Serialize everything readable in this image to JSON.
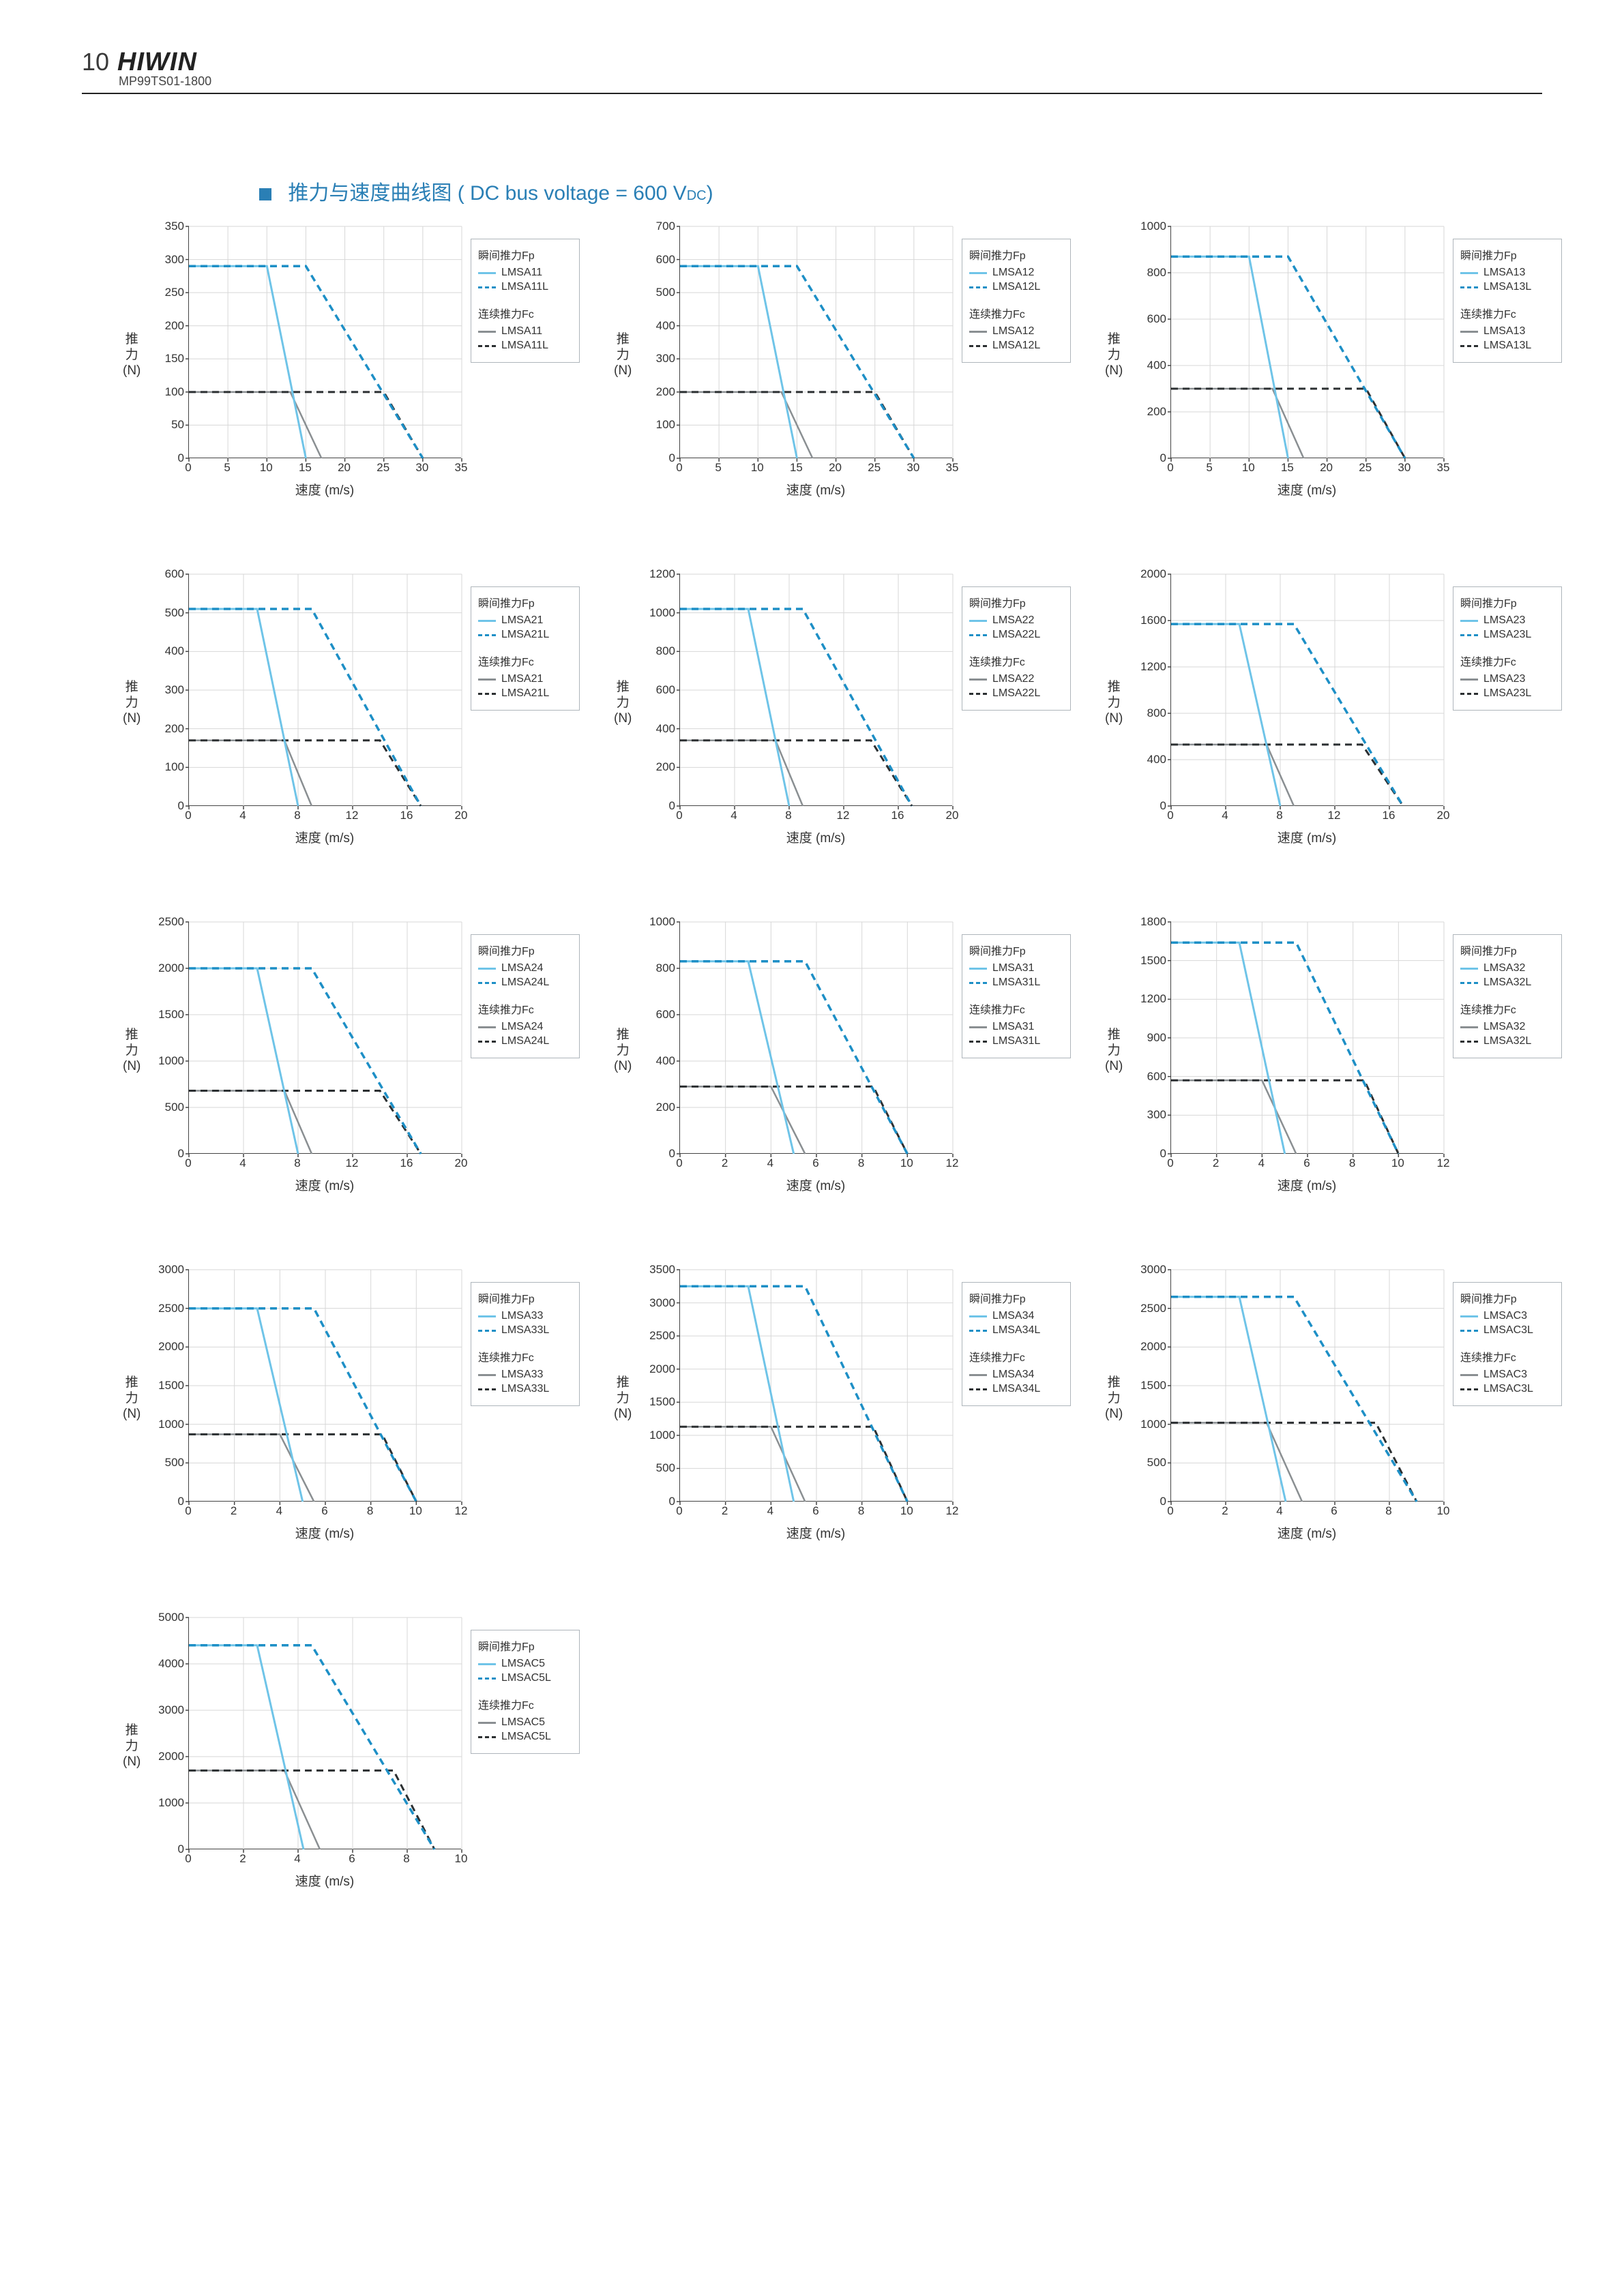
{
  "header": {
    "page_number": "10",
    "brand": "HIWIN",
    "subcode": "MP99TS01-1800"
  },
  "section_title": {
    "prefix": "推力与速度曲线图",
    "bus_label": "( DC bus voltage = 600 V",
    "dc_sub": "DC",
    "close": ")"
  },
  "axis_labels": {
    "y": "推\n力\n(N)",
    "x": "速度 (m/s)"
  },
  "legend_labels": {
    "fp": "瞬间推力Fp",
    "fc": "连续推力Fc"
  },
  "colors": {
    "fp_solid": "#6fc4e8",
    "fp_dash": "#1d8fc6",
    "fc_solid": "#8a8f92",
    "fc_dash": "#2b2f31",
    "grid": "#d7d7d7",
    "axis": "#444444",
    "legend_border": "#aeb5bb",
    "text": "#333333",
    "title": "#2a7fb5"
  },
  "charts": [
    {
      "models": [
        "LMSA11",
        "LMSA11L"
      ],
      "xmax": 35,
      "xstep": 5,
      "xticks": [
        0,
        5,
        10,
        15,
        20,
        25,
        30,
        35
      ],
      "ymax": 350,
      "yticks": [
        0,
        50,
        100,
        150,
        200,
        250,
        300,
        350
      ],
      "fp_solid": [
        [
          0,
          290
        ],
        [
          10,
          290
        ],
        [
          15,
          0
        ]
      ],
      "fp_dash": [
        [
          0,
          290
        ],
        [
          15,
          290
        ],
        [
          30,
          0
        ]
      ],
      "fc_solid": [
        [
          0,
          100
        ],
        [
          13,
          100
        ],
        [
          17,
          0
        ]
      ],
      "fc_dash": [
        [
          0,
          100
        ],
        [
          25,
          100
        ],
        [
          30,
          0
        ]
      ]
    },
    {
      "models": [
        "LMSA12",
        "LMSA12L"
      ],
      "xmax": 35,
      "xstep": 5,
      "xticks": [
        0,
        5,
        10,
        15,
        20,
        25,
        30,
        35
      ],
      "ymax": 700,
      "yticks": [
        0,
        100,
        200,
        300,
        400,
        500,
        600,
        700
      ],
      "fp_solid": [
        [
          0,
          580
        ],
        [
          10,
          580
        ],
        [
          15,
          0
        ]
      ],
      "fp_dash": [
        [
          0,
          580
        ],
        [
          15,
          580
        ],
        [
          30,
          0
        ]
      ],
      "fc_solid": [
        [
          0,
          200
        ],
        [
          13,
          200
        ],
        [
          17,
          0
        ]
      ],
      "fc_dash": [
        [
          0,
          200
        ],
        [
          25,
          200
        ],
        [
          30,
          0
        ]
      ]
    },
    {
      "models": [
        "LMSA13",
        "LMSA13L"
      ],
      "xmax": 35,
      "xstep": 5,
      "xticks": [
        0,
        5,
        10,
        15,
        20,
        25,
        30,
        35
      ],
      "ymax": 1000,
      "yticks": [
        0,
        200,
        400,
        600,
        800,
        1000
      ],
      "fp_solid": [
        [
          0,
          870
        ],
        [
          10,
          870
        ],
        [
          15,
          0
        ]
      ],
      "fp_dash": [
        [
          0,
          870
        ],
        [
          15,
          870
        ],
        [
          30,
          0
        ]
      ],
      "fc_solid": [
        [
          0,
          300
        ],
        [
          13,
          300
        ],
        [
          17,
          0
        ]
      ],
      "fc_dash": [
        [
          0,
          300
        ],
        [
          25,
          300
        ],
        [
          30,
          0
        ]
      ]
    },
    {
      "models": [
        "LMSA21",
        "LMSA21L"
      ],
      "xmax": 20,
      "xstep": 4,
      "xticks": [
        0,
        4,
        8,
        12,
        16,
        20
      ],
      "ymax": 600,
      "yticks": [
        0,
        100,
        200,
        300,
        400,
        500,
        600
      ],
      "fp_solid": [
        [
          0,
          510
        ],
        [
          5,
          510
        ],
        [
          8,
          0
        ]
      ],
      "fp_dash": [
        [
          0,
          510
        ],
        [
          9,
          510
        ],
        [
          17,
          0
        ]
      ],
      "fc_solid": [
        [
          0,
          170
        ],
        [
          7,
          170
        ],
        [
          9,
          0
        ]
      ],
      "fc_dash": [
        [
          0,
          170
        ],
        [
          14,
          170
        ],
        [
          17,
          0
        ]
      ]
    },
    {
      "models": [
        "LMSA22",
        "LMSA22L"
      ],
      "xmax": 20,
      "xstep": 4,
      "xticks": [
        0,
        4,
        8,
        12,
        16,
        20
      ],
      "ymax": 1200,
      "yticks": [
        0,
        200,
        400,
        600,
        800,
        1000,
        1200
      ],
      "fp_solid": [
        [
          0,
          1020
        ],
        [
          5,
          1020
        ],
        [
          8,
          0
        ]
      ],
      "fp_dash": [
        [
          0,
          1020
        ],
        [
          9,
          1020
        ],
        [
          17,
          0
        ]
      ],
      "fc_solid": [
        [
          0,
          340
        ],
        [
          7,
          340
        ],
        [
          9,
          0
        ]
      ],
      "fc_dash": [
        [
          0,
          340
        ],
        [
          14,
          340
        ],
        [
          17,
          0
        ]
      ]
    },
    {
      "models": [
        "LMSA23",
        "LMSA23L"
      ],
      "xmax": 20,
      "xstep": 4,
      "xticks": [
        0,
        4,
        8,
        12,
        16,
        20
      ],
      "ymax": 2000,
      "yticks": [
        0,
        400,
        800,
        1200,
        1600,
        2000
      ],
      "fp_solid": [
        [
          0,
          1570
        ],
        [
          5,
          1570
        ],
        [
          8,
          0
        ]
      ],
      "fp_dash": [
        [
          0,
          1570
        ],
        [
          9,
          1570
        ],
        [
          17,
          0
        ]
      ],
      "fc_solid": [
        [
          0,
          530
        ],
        [
          7,
          530
        ],
        [
          9,
          0
        ]
      ],
      "fc_dash": [
        [
          0,
          530
        ],
        [
          14,
          530
        ],
        [
          17,
          0
        ]
      ]
    },
    {
      "models": [
        "LMSA24",
        "LMSA24L"
      ],
      "xmax": 20,
      "xstep": 4,
      "xticks": [
        0,
        4,
        8,
        12,
        16,
        20
      ],
      "ymax": 2500,
      "yticks": [
        0,
        500,
        1000,
        1500,
        2000,
        2500
      ],
      "fp_solid": [
        [
          0,
          2000
        ],
        [
          5,
          2000
        ],
        [
          8,
          0
        ]
      ],
      "fp_dash": [
        [
          0,
          2000
        ],
        [
          9,
          2000
        ],
        [
          17,
          0
        ]
      ],
      "fc_solid": [
        [
          0,
          680
        ],
        [
          7,
          680
        ],
        [
          9,
          0
        ]
      ],
      "fc_dash": [
        [
          0,
          680
        ],
        [
          14,
          680
        ],
        [
          17,
          0
        ]
      ]
    },
    {
      "models": [
        "LMSA31",
        "LMSA31L"
      ],
      "xmax": 12,
      "xstep": 2,
      "xticks": [
        0,
        2,
        4,
        6,
        8,
        10,
        12
      ],
      "ymax": 1000,
      "yticks": [
        0,
        200,
        400,
        600,
        800,
        1000
      ],
      "fp_solid": [
        [
          0,
          830
        ],
        [
          3,
          830
        ],
        [
          5,
          0
        ]
      ],
      "fp_dash": [
        [
          0,
          830
        ],
        [
          5.5,
          830
        ],
        [
          10,
          0
        ]
      ],
      "fc_solid": [
        [
          0,
          290
        ],
        [
          4,
          290
        ],
        [
          5.5,
          0
        ]
      ],
      "fc_dash": [
        [
          0,
          290
        ],
        [
          8.5,
          290
        ],
        [
          10,
          0
        ]
      ]
    },
    {
      "models": [
        "LMSA32",
        "LMSA32L"
      ],
      "xmax": 12,
      "xstep": 2,
      "xticks": [
        0,
        2,
        4,
        6,
        8,
        10,
        12
      ],
      "ymax": 1800,
      "yticks": [
        0,
        300,
        600,
        900,
        1200,
        1500,
        1800
      ],
      "fp_solid": [
        [
          0,
          1640
        ],
        [
          3,
          1640
        ],
        [
          5,
          0
        ]
      ],
      "fp_dash": [
        [
          0,
          1640
        ],
        [
          5.5,
          1640
        ],
        [
          10,
          0
        ]
      ],
      "fc_solid": [
        [
          0,
          570
        ],
        [
          4,
          570
        ],
        [
          5.5,
          0
        ]
      ],
      "fc_dash": [
        [
          0,
          570
        ],
        [
          8.5,
          570
        ],
        [
          10,
          0
        ]
      ]
    },
    {
      "models": [
        "LMSA33",
        "LMSA33L"
      ],
      "xmax": 12,
      "xstep": 2,
      "xticks": [
        0,
        2,
        4,
        6,
        8,
        10,
        12
      ],
      "ymax": 3000,
      "yticks": [
        0,
        500,
        1000,
        1500,
        2000,
        2500,
        3000
      ],
      "fp_solid": [
        [
          0,
          2500
        ],
        [
          3,
          2500
        ],
        [
          5,
          0
        ]
      ],
      "fp_dash": [
        [
          0,
          2500
        ],
        [
          5.5,
          2500
        ],
        [
          10,
          0
        ]
      ],
      "fc_solid": [
        [
          0,
          870
        ],
        [
          4,
          870
        ],
        [
          5.5,
          0
        ]
      ],
      "fc_dash": [
        [
          0,
          870
        ],
        [
          8.5,
          870
        ],
        [
          10,
          0
        ]
      ]
    },
    {
      "models": [
        "LMSA34",
        "LMSA34L"
      ],
      "xmax": 12,
      "xstep": 2,
      "xticks": [
        0,
        2,
        4,
        6,
        8,
        10,
        12
      ],
      "ymax": 3500,
      "yticks": [
        0,
        500,
        1000,
        1500,
        2000,
        2500,
        3000,
        3500
      ],
      "fp_solid": [
        [
          0,
          3250
        ],
        [
          3,
          3250
        ],
        [
          5,
          0
        ]
      ],
      "fp_dash": [
        [
          0,
          3250
        ],
        [
          5.5,
          3250
        ],
        [
          10,
          0
        ]
      ],
      "fc_solid": [
        [
          0,
          1130
        ],
        [
          4,
          1130
        ],
        [
          5.5,
          0
        ]
      ],
      "fc_dash": [
        [
          0,
          1130
        ],
        [
          8.5,
          1130
        ],
        [
          10,
          0
        ]
      ]
    },
    {
      "models": [
        "LMSAC3",
        "LMSAC3L"
      ],
      "xmax": 10,
      "xstep": 2,
      "xticks": [
        0,
        2,
        4,
        6,
        8,
        10
      ],
      "ymax": 3000,
      "yticks": [
        0,
        500,
        1000,
        1500,
        2000,
        2500,
        3000
      ],
      "fp_solid": [
        [
          0,
          2650
        ],
        [
          2.5,
          2650
        ],
        [
          4.2,
          0
        ]
      ],
      "fp_dash": [
        [
          0,
          2650
        ],
        [
          4.5,
          2650
        ],
        [
          9,
          0
        ]
      ],
      "fc_solid": [
        [
          0,
          1020
        ],
        [
          3.5,
          1020
        ],
        [
          4.8,
          0
        ]
      ],
      "fc_dash": [
        [
          0,
          1020
        ],
        [
          7.5,
          1020
        ],
        [
          9,
          0
        ]
      ]
    },
    {
      "models": [
        "LMSAC5",
        "LMSAC5L"
      ],
      "xmax": 10,
      "xstep": 2,
      "xticks": [
        0,
        2,
        4,
        6,
        8,
        10
      ],
      "ymax": 5000,
      "yticks": [
        0,
        1000,
        2000,
        3000,
        4000,
        5000
      ],
      "fp_solid": [
        [
          0,
          4400
        ],
        [
          2.5,
          4400
        ],
        [
          4.2,
          0
        ]
      ],
      "fp_dash": [
        [
          0,
          4400
        ],
        [
          4.5,
          4400
        ],
        [
          9,
          0
        ]
      ],
      "fc_solid": [
        [
          0,
          1700
        ],
        [
          3.5,
          1700
        ],
        [
          4.8,
          0
        ]
      ],
      "fc_dash": [
        [
          0,
          1700
        ],
        [
          7.5,
          1700
        ],
        [
          9,
          0
        ]
      ]
    }
  ]
}
